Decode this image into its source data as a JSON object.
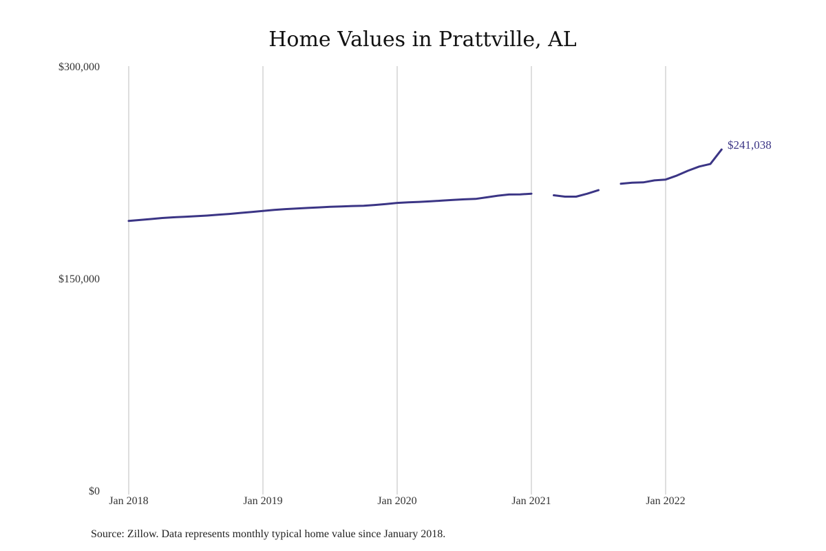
{
  "chart_data": {
    "type": "line",
    "title": "Home Values in Prattville, AL",
    "xlabel": "",
    "ylabel": "",
    "x_range": [
      "2018-01",
      "2022-05"
    ],
    "ylim": [
      0,
      300000
    ],
    "y_ticks": [
      {
        "value": 0,
        "label": "$0"
      },
      {
        "value": 150000,
        "label": "$150,000"
      },
      {
        "value": 300000,
        "label": "$300,000"
      }
    ],
    "x_ticks": [
      {
        "value": "2018-01",
        "label": "Jan 2018"
      },
      {
        "value": "2019-01",
        "label": "Jan 2019"
      },
      {
        "value": "2020-01",
        "label": "Jan 2020"
      },
      {
        "value": "2021-01",
        "label": "Jan 2021"
      },
      {
        "value": "2022-01",
        "label": "Jan 2022"
      }
    ],
    "grid": "vertical",
    "line_color": "#3b3585",
    "series": [
      {
        "values": [
          {
            "x": "2018-01",
            "y": 190500
          },
          {
            "x": "2018-02",
            "y": 191200
          },
          {
            "x": "2018-03",
            "y": 191900
          },
          {
            "x": "2018-04",
            "y": 192600
          },
          {
            "x": "2018-05",
            "y": 193100
          },
          {
            "x": "2018-06",
            "y": 193500
          },
          {
            "x": "2018-07",
            "y": 193900
          },
          {
            "x": "2018-08",
            "y": 194300
          },
          {
            "x": "2018-09",
            "y": 194900
          },
          {
            "x": "2018-10",
            "y": 195500
          },
          {
            "x": "2018-11",
            "y": 196200
          },
          {
            "x": "2018-12",
            "y": 196900
          },
          {
            "x": "2019-01",
            "y": 197600
          },
          {
            "x": "2019-02",
            "y": 198300
          },
          {
            "x": "2019-03",
            "y": 198900
          },
          {
            "x": "2019-04",
            "y": 199300
          },
          {
            "x": "2019-05",
            "y": 199700
          },
          {
            "x": "2019-06",
            "y": 200100
          },
          {
            "x": "2019-07",
            "y": 200500
          },
          {
            "x": "2019-08",
            "y": 200800
          },
          {
            "x": "2019-09",
            "y": 201100
          },
          {
            "x": "2019-10",
            "y": 201300
          },
          {
            "x": "2019-11",
            "y": 201800
          },
          {
            "x": "2019-12",
            "y": 202500
          },
          {
            "x": "2020-01",
            "y": 203300
          },
          {
            "x": "2020-02",
            "y": 203700
          },
          {
            "x": "2020-03",
            "y": 204000
          },
          {
            "x": "2020-04",
            "y": 204400
          },
          {
            "x": "2020-05",
            "y": 204900
          },
          {
            "x": "2020-06",
            "y": 205400
          },
          {
            "x": "2020-07",
            "y": 205800
          },
          {
            "x": "2020-08",
            "y": 206100
          },
          {
            "x": "2020-09",
            "y": 207200
          },
          {
            "x": "2020-10",
            "y": 208400
          },
          {
            "x": "2020-11",
            "y": 209200
          },
          {
            "x": "2020-12",
            "y": 209300
          },
          {
            "x": "2021-01",
            "y": 209800
          },
          {
            "x": "2021-02",
            "y": null
          },
          {
            "x": "2021-03",
            "y": 208700
          },
          {
            "x": "2021-04",
            "y": 207700
          },
          {
            "x": "2021-05",
            "y": 207700
          },
          {
            "x": "2021-06",
            "y": 209800
          },
          {
            "x": "2021-07",
            "y": 212300
          },
          {
            "x": "2021-08",
            "y": null
          },
          {
            "x": "2021-09",
            "y": 216800
          },
          {
            "x": "2021-10",
            "y": 217600
          },
          {
            "x": "2021-11",
            "y": 217800
          },
          {
            "x": "2021-12",
            "y": 219200
          },
          {
            "x": "2022-01",
            "y": 219800
          },
          {
            "x": "2022-02",
            "y": 222600
          },
          {
            "x": "2022-03",
            "y": 226000
          },
          {
            "x": "2022-04",
            "y": 229000
          },
          {
            "x": "2022-05",
            "y": 230800
          },
          {
            "x": "2022-06",
            "y": 241038
          }
        ]
      }
    ],
    "end_label": "$241,038",
    "source": "Source: Zillow. Data represents monthly typical home value since January 2018."
  }
}
